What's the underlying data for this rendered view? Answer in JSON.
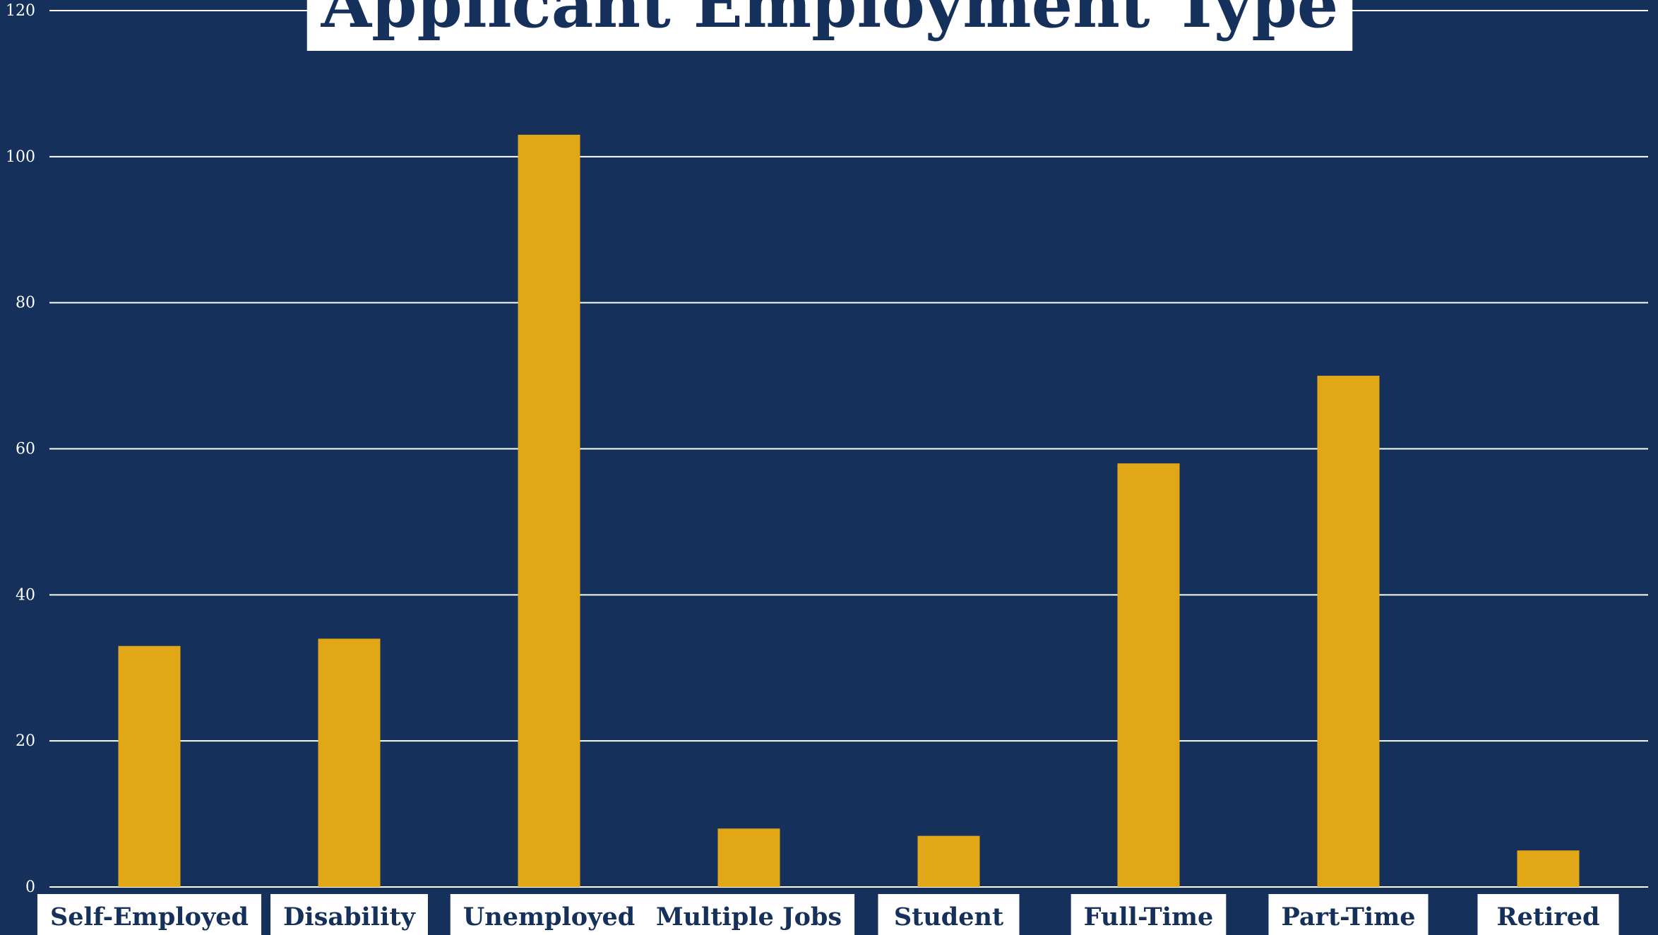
{
  "colors": {
    "background": "#15305a",
    "bar": "#e1a717",
    "grid": "#ffffff",
    "label_box": "#ffffff",
    "label_text": "#15305a"
  },
  "chart_data": {
    "type": "bar",
    "title": "Applicant Employment Type",
    "categories": [
      "Self-Employed",
      "Disability",
      "Unemployed",
      "Multiple Jobs",
      "Student",
      "Full-Time",
      "Part-Time",
      "Retired"
    ],
    "values": [
      33,
      34,
      103,
      8,
      7,
      58,
      70,
      5
    ],
    "ylim": [
      0,
      120
    ],
    "yticks": [
      0,
      20,
      40,
      60,
      80,
      100,
      120
    ],
    "grid": true,
    "legend": "none",
    "xlabel": "",
    "ylabel": ""
  }
}
